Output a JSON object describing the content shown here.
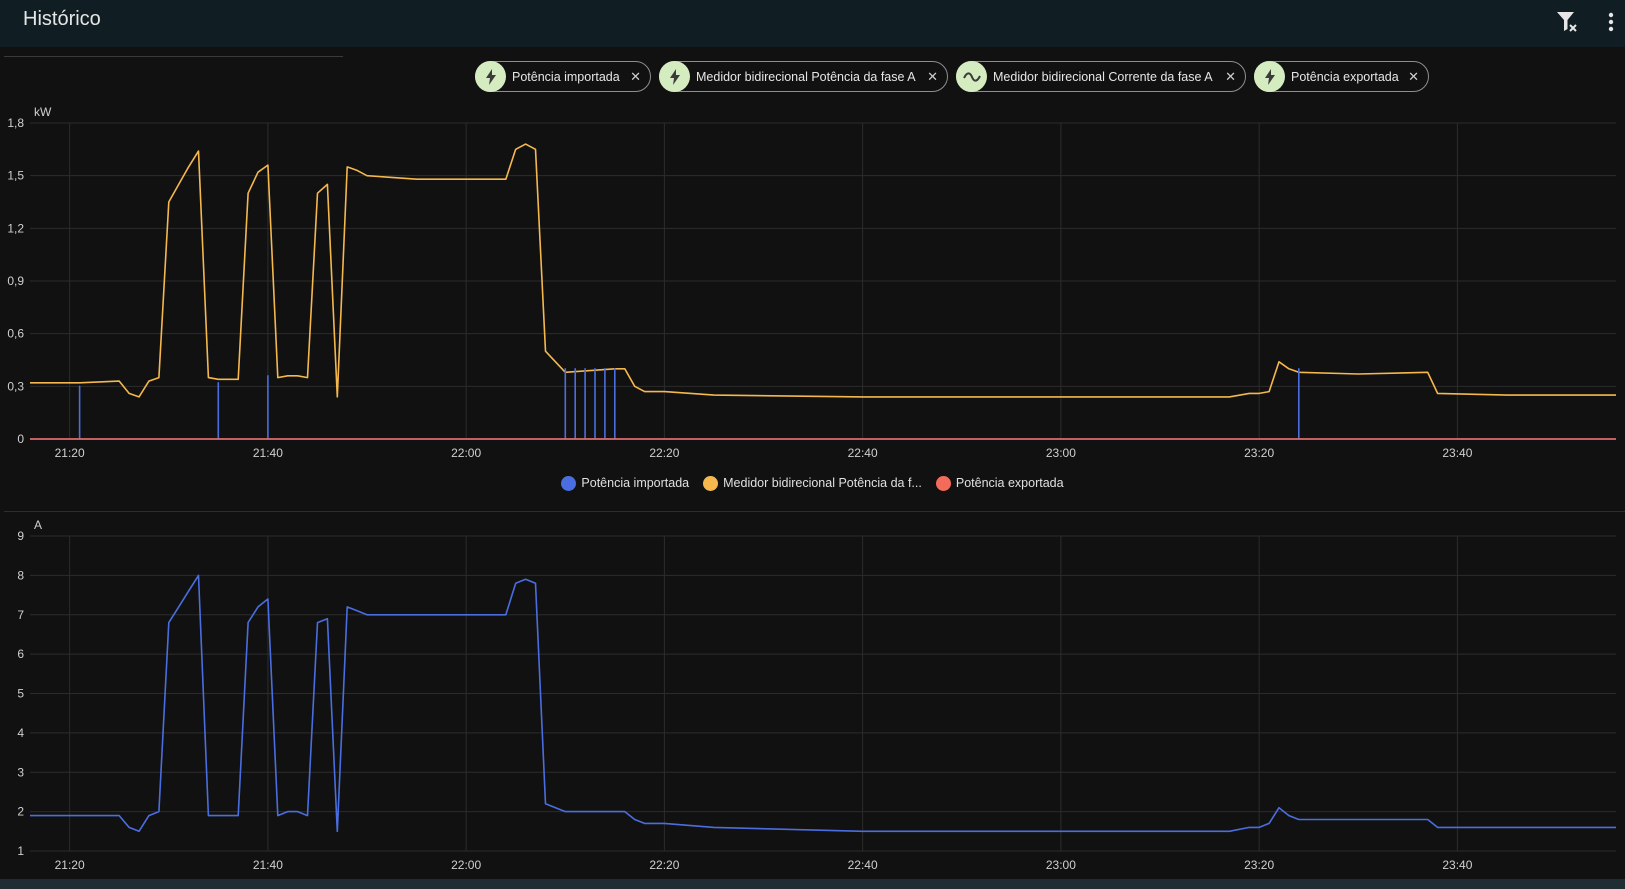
{
  "header": {
    "title": "Histórico",
    "clear_filter_icon": "filter-remove-icon",
    "menu_icon": "dots-vertical-icon"
  },
  "chips": [
    {
      "label": "Potência importada",
      "icon": "flash-icon"
    },
    {
      "label": "Medidor bidirecional Potência da fase A",
      "icon": "flash-icon"
    },
    {
      "label": "Medidor bidirecional Corrente da fase A",
      "icon": "sine-wave-icon"
    },
    {
      "label": "Potência exportada",
      "icon": "flash-icon"
    }
  ],
  "colors": {
    "imported": "#4a6ee0",
    "phase_power": "#f5b84e",
    "exported": "#f36b5a",
    "grid": "#2c2c2c",
    "chip_icon_bg": "#d5ecc1"
  },
  "legend": [
    {
      "label": "Potência importada",
      "color": "#4a6ee0"
    },
    {
      "label": "Medidor bidirecional Potência da f...",
      "color": "#f5b84e"
    },
    {
      "label": "Potência exportada",
      "color": "#f36b5a"
    }
  ],
  "chart_data": [
    {
      "type": "line",
      "ylabel": "kW",
      "ylim": [
        0,
        1.8
      ],
      "yticks": [
        "0",
        "0,3",
        "0,6",
        "0,9",
        "1,2",
        "1,5",
        "1,8"
      ],
      "xlim": [
        "21:16",
        "23:56"
      ],
      "xticks": [
        "21:20",
        "21:40",
        "22:00",
        "22:20",
        "22:40",
        "23:00",
        "23:20",
        "23:40"
      ],
      "grid": true,
      "legend_position": "bottom-center",
      "series": [
        {
          "name": "Medidor bidirecional Potência da f...",
          "color": "#f5b84e",
          "x": [
            "21:16",
            "21:17",
            "21:21",
            "21:25",
            "21:26",
            "21:27",
            "21:28",
            "21:29",
            "21:30",
            "21:31",
            "21:32",
            "21:33",
            "21:34",
            "21:35",
            "21:37",
            "21:38",
            "21:39",
            "21:40",
            "21:41",
            "21:42",
            "21:43",
            "21:44",
            "21:45",
            "21:46",
            "21:47",
            "21:48",
            "21:49",
            "21:50",
            "21:55",
            "22:00",
            "22:03",
            "22:04",
            "22:05",
            "22:06",
            "22:07",
            "22:08",
            "22:10",
            "22:15",
            "22:16",
            "22:17",
            "22:18",
            "22:20",
            "22:25",
            "22:40",
            "23:00",
            "23:15",
            "23:17",
            "23:19",
            "23:20",
            "23:21",
            "23:22",
            "23:23",
            "23:24",
            "23:30",
            "23:37",
            "23:38",
            "23:45",
            "23:56"
          ],
          "y": [
            0.32,
            0.32,
            0.32,
            0.33,
            0.26,
            0.24,
            0.33,
            0.35,
            1.35,
            1.45,
            1.55,
            1.64,
            0.35,
            0.34,
            0.34,
            1.4,
            1.52,
            1.56,
            0.35,
            0.36,
            0.36,
            0.35,
            1.4,
            1.45,
            0.24,
            1.55,
            1.53,
            1.5,
            1.48,
            1.48,
            1.48,
            1.48,
            1.65,
            1.68,
            1.65,
            0.5,
            0.38,
            0.4,
            0.4,
            0.3,
            0.27,
            0.27,
            0.25,
            0.24,
            0.24,
            0.24,
            0.24,
            0.26,
            0.26,
            0.27,
            0.44,
            0.4,
            0.38,
            0.37,
            0.38,
            0.26,
            0.25,
            0.25
          ]
        },
        {
          "name": "Potência importada",
          "color": "#4a6ee0",
          "x": [
            "21:16",
            "21:21",
            "21:21",
            "21:21",
            "21:35",
            "21:35",
            "21:35",
            "21:40",
            "21:40",
            "21:40",
            "22:10",
            "22:10",
            "22:10",
            "22:11",
            "22:11",
            "22:11",
            "22:12",
            "22:12",
            "22:12",
            "22:13",
            "22:13",
            "22:13",
            "22:14",
            "22:14",
            "22:14",
            "22:15",
            "22:15",
            "22:15",
            "23:24",
            "23:24",
            "23:24",
            "23:56"
          ],
          "y": [
            0,
            0,
            0.3,
            0,
            0,
            0.32,
            0,
            0,
            0.36,
            0,
            0,
            0.4,
            0,
            0,
            0.4,
            0,
            0,
            0.4,
            0,
            0,
            0.4,
            0,
            0,
            0.4,
            0,
            0,
            0.4,
            0,
            0,
            0.4,
            0,
            0
          ]
        },
        {
          "name": "Potência exportada",
          "color": "#f36b5a",
          "x": [
            "21:16",
            "23:56"
          ],
          "y": [
            0,
            0
          ]
        }
      ]
    },
    {
      "type": "line",
      "ylabel": "A",
      "ylim": [
        1,
        9
      ],
      "yticks": [
        "1",
        "2",
        "3",
        "4",
        "5",
        "6",
        "7",
        "8",
        "9"
      ],
      "xlim": [
        "21:16",
        "23:56"
      ],
      "xticks": [
        "21:20",
        "21:40",
        "22:00",
        "22:20",
        "22:40",
        "23:00",
        "23:20",
        "23:40"
      ],
      "grid": true,
      "series": [
        {
          "name": "Medidor bidirecional Corrente da fase A",
          "color": "#4a6ee0",
          "x": [
            "21:16",
            "21:17",
            "21:21",
            "21:25",
            "21:26",
            "21:27",
            "21:28",
            "21:29",
            "21:30",
            "21:31",
            "21:32",
            "21:33",
            "21:34",
            "21:35",
            "21:37",
            "21:38",
            "21:39",
            "21:40",
            "21:41",
            "21:42",
            "21:43",
            "21:44",
            "21:45",
            "21:46",
            "21:47",
            "21:48",
            "21:49",
            "21:50",
            "21:55",
            "22:00",
            "22:03",
            "22:04",
            "22:05",
            "22:06",
            "22:07",
            "22:08",
            "22:10",
            "22:15",
            "22:16",
            "22:17",
            "22:18",
            "22:20",
            "22:25",
            "22:40",
            "23:00",
            "23:15",
            "23:17",
            "23:19",
            "23:20",
            "23:21",
            "23:22",
            "23:23",
            "23:24",
            "23:30",
            "23:37",
            "23:38",
            "23:45",
            "23:56"
          ],
          "y": [
            1.9,
            1.9,
            1.9,
            1.9,
            1.6,
            1.5,
            1.9,
            2.0,
            6.8,
            7.2,
            7.6,
            8.0,
            1.9,
            1.9,
            1.9,
            6.8,
            7.2,
            7.4,
            1.9,
            2.0,
            2.0,
            1.9,
            6.8,
            6.9,
            1.5,
            7.2,
            7.1,
            7.0,
            7.0,
            7.0,
            7.0,
            7.0,
            7.8,
            7.9,
            7.8,
            2.2,
            2.0,
            2.0,
            2.0,
            1.8,
            1.7,
            1.7,
            1.6,
            1.5,
            1.5,
            1.5,
            1.5,
            1.6,
            1.6,
            1.7,
            2.1,
            1.9,
            1.8,
            1.8,
            1.8,
            1.6,
            1.6,
            1.6
          ]
        }
      ]
    }
  ]
}
